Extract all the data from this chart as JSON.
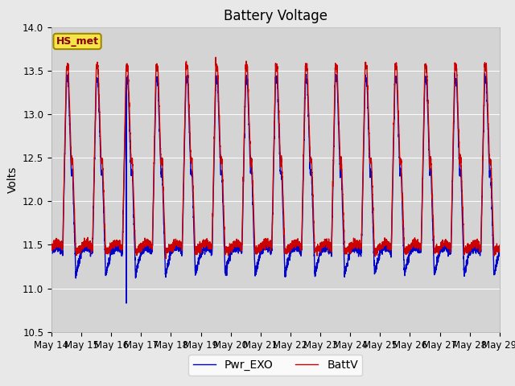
{
  "title": "Battery Voltage",
  "ylabel": "Volts",
  "ylim": [
    10.5,
    14.0
  ],
  "yticks": [
    10.5,
    11.0,
    11.5,
    12.0,
    12.5,
    13.0,
    13.5,
    14.0
  ],
  "x_label_days": [
    "May 14",
    "May 15",
    "May 16",
    "May 17",
    "May 18",
    "May 19",
    "May 20",
    "May 21",
    "May 22",
    "May 23",
    "May 24",
    "May 25",
    "May 26",
    "May 27",
    "May 28",
    "May 29"
  ],
  "color_battv": "#cc0000",
  "color_pwrexo": "#0000cc",
  "legend_label1": "BattV",
  "legend_label2": "Pwr_EXO",
  "station_label": "HS_met",
  "plot_bg_color": "#d4d4d4",
  "fig_bg_color": "#e8e8e8",
  "grid_color": "#ffffff",
  "title_fontsize": 12,
  "axis_fontsize": 10,
  "tick_fontsize": 8.5,
  "legend_fontsize": 10
}
